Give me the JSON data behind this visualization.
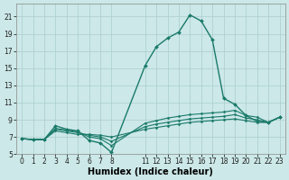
{
  "bg_color": "#cce8e8",
  "grid_color": "#aacece",
  "line_color": "#1a7a6a",
  "xlabel": "Humidex (Indice chaleur)",
  "xlabel_fontsize": 7,
  "tick_fontsize": 5.5,
  "xlim": [
    -0.5,
    23.5
  ],
  "ylim": [
    5,
    22.5
  ],
  "yticks": [
    5,
    7,
    9,
    11,
    13,
    15,
    17,
    19,
    21
  ],
  "xticks": [
    0,
    1,
    2,
    3,
    4,
    5,
    6,
    7,
    8,
    11,
    12,
    13,
    14,
    15,
    16,
    17,
    18,
    19,
    20,
    21,
    22,
    23
  ],
  "series": [
    {
      "x": [
        0,
        1,
        2,
        3,
        4,
        5,
        6,
        7,
        8,
        11,
        12,
        13,
        14,
        15,
        16,
        17,
        18,
        19,
        20,
        21,
        22,
        23
      ],
      "y": [
        6.8,
        6.7,
        6.7,
        8.3,
        7.9,
        7.7,
        6.6,
        6.3,
        5.2,
        15.3,
        17.5,
        18.5,
        19.2,
        21.2,
        20.5,
        18.3,
        11.5,
        10.8,
        9.5,
        8.8,
        8.7,
        9.3
      ],
      "marker": "D",
      "markersize": 2.0,
      "linewidth": 1.0
    },
    {
      "x": [
        0,
        1,
        2,
        3,
        4,
        5,
        6,
        7,
        8,
        11,
        12,
        13,
        14,
        15,
        16,
        17,
        18,
        19,
        20,
        21,
        22,
        23
      ],
      "y": [
        6.8,
        6.7,
        6.7,
        8.0,
        7.8,
        7.6,
        7.0,
        6.8,
        6.0,
        8.6,
        8.9,
        9.2,
        9.4,
        9.6,
        9.7,
        9.8,
        9.9,
        10.1,
        9.5,
        9.3,
        8.7,
        9.3
      ],
      "marker": "D",
      "markersize": 1.5,
      "linewidth": 0.8
    },
    {
      "x": [
        0,
        1,
        2,
        3,
        4,
        5,
        6,
        7,
        8,
        11,
        12,
        13,
        14,
        15,
        16,
        17,
        18,
        19,
        20,
        21,
        22,
        23
      ],
      "y": [
        6.8,
        6.7,
        6.7,
        7.9,
        7.7,
        7.5,
        7.2,
        7.0,
        6.5,
        8.2,
        8.5,
        8.7,
        8.9,
        9.1,
        9.2,
        9.3,
        9.4,
        9.6,
        9.2,
        9.0,
        8.7,
        9.3
      ],
      "marker": "D",
      "markersize": 1.5,
      "linewidth": 0.8
    },
    {
      "x": [
        0,
        1,
        2,
        3,
        4,
        5,
        6,
        7,
        8,
        11,
        12,
        13,
        14,
        15,
        16,
        17,
        18,
        19,
        20,
        21,
        22,
        23
      ],
      "y": [
        6.8,
        6.7,
        6.7,
        7.7,
        7.5,
        7.3,
        7.3,
        7.2,
        7.0,
        7.9,
        8.1,
        8.3,
        8.5,
        8.7,
        8.8,
        8.9,
        9.0,
        9.1,
        8.9,
        8.7,
        8.7,
        9.3
      ],
      "marker": "D",
      "markersize": 1.5,
      "linewidth": 0.8
    }
  ]
}
